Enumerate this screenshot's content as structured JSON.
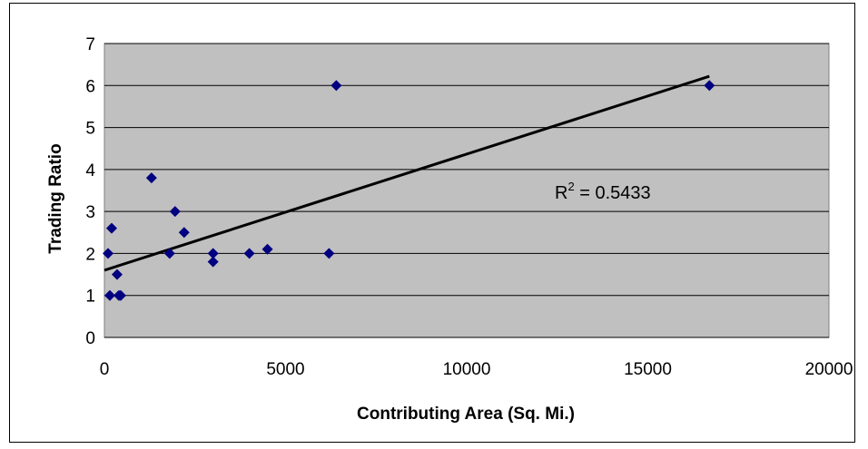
{
  "chart_data": {
    "type": "scatter",
    "title": "",
    "xlabel": "Contributing Area (Sq. Mi.)",
    "ylabel": "Trading Ratio",
    "xlim": [
      0,
      20000
    ],
    "ylim": [
      0,
      7
    ],
    "x_ticks": [
      "0",
      "5000",
      "10000",
      "15000",
      "20000"
    ],
    "y_ticks": [
      "0",
      "1",
      "2",
      "3",
      "4",
      "5",
      "6",
      "7"
    ],
    "grid": "horizontal",
    "legend": "none",
    "colors": {
      "plot_background": "#c0c0c0",
      "marker": "#000080",
      "trendline": "#000000",
      "gridline": "#000000"
    },
    "marker_shape": "diamond",
    "series": [
      {
        "points": [
          {
            "x": 100,
            "y": 2.0
          },
          {
            "x": 150,
            "y": 1.0
          },
          {
            "x": 200,
            "y": 2.6
          },
          {
            "x": 350,
            "y": 1.5
          },
          {
            "x": 400,
            "y": 1.0
          },
          {
            "x": 450,
            "y": 1.0
          },
          {
            "x": 1300,
            "y": 3.8
          },
          {
            "x": 1800,
            "y": 2.0
          },
          {
            "x": 1950,
            "y": 3.0
          },
          {
            "x": 2200,
            "y": 2.5
          },
          {
            "x": 3000,
            "y": 2.0
          },
          {
            "x": 3000,
            "y": 1.8
          },
          {
            "x": 4000,
            "y": 2.0
          },
          {
            "x": 4500,
            "y": 2.1
          },
          {
            "x": 6200,
            "y": 2.0
          },
          {
            "x": 6400,
            "y": 6.0
          },
          {
            "x": 16700,
            "y": 6.0
          }
        ]
      }
    ],
    "trendline": {
      "type": "linear",
      "from": {
        "x": 0,
        "y": 1.6
      },
      "to": {
        "x": 16700,
        "y": 6.22
      },
      "r_squared_label": "R",
      "r_squared_sup": "2",
      "r_squared_value": " = 0.5433"
    }
  }
}
